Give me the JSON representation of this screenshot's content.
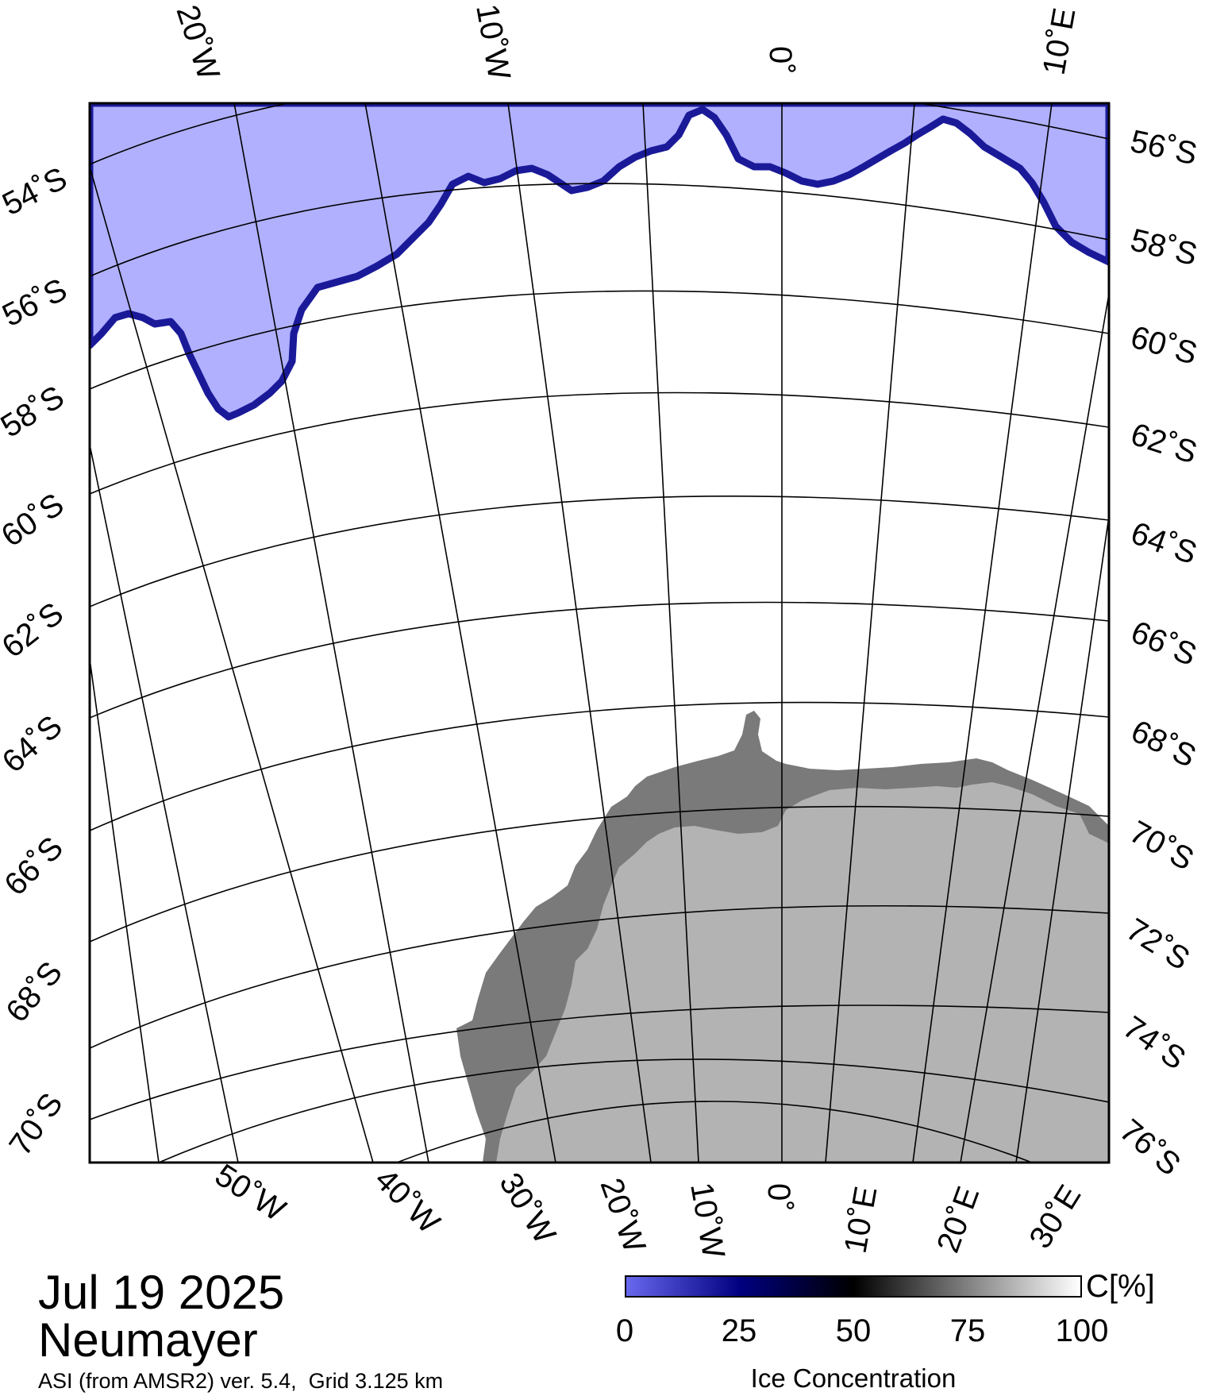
{
  "legend": {
    "date": "Jul 19 2025",
    "station": "Neumayer",
    "source": "ASI (from AMSR2) ver. 5.4,  Grid 3.125 km"
  },
  "colorbar": {
    "unit": "C[%]",
    "title": "Ice Concentration",
    "ticks": [
      "0",
      "25",
      "50",
      "75",
      "100"
    ],
    "tick_values": [
      0,
      25,
      50,
      75,
      100
    ],
    "colors": [
      "#6868ee",
      "#000080",
      "#000000",
      "#808080",
      "#ffffff"
    ]
  },
  "axes": {
    "top_lon_labels": [
      "20˚W",
      "10˚W",
      "0˚",
      "10˚E"
    ],
    "bottom_lon_labels": [
      "50˚W",
      "40˚W",
      "30˚W",
      "20˚W",
      "10˚W",
      "0˚",
      "10˚E",
      "20˚E",
      "30˚E"
    ],
    "left_lat_labels": [
      "54˚S",
      "56˚S",
      "58˚S",
      "60˚S",
      "62˚S",
      "64˚S",
      "66˚S",
      "68˚S",
      "70˚S"
    ],
    "right_lat_labels": [
      "56˚S",
      "58˚S",
      "60˚S",
      "62˚S",
      "64˚S",
      "66˚S",
      "68˚S",
      "70˚S",
      "72˚S",
      "74˚S",
      "76˚S"
    ]
  },
  "map": {
    "colors": {
      "open_water": "#b0b0ff",
      "ice_edge": "#1a1a99",
      "sea_ice": "#ffffff",
      "ice_shelf": "#7a7a7a",
      "land": "#b3b3b3"
    }
  }
}
